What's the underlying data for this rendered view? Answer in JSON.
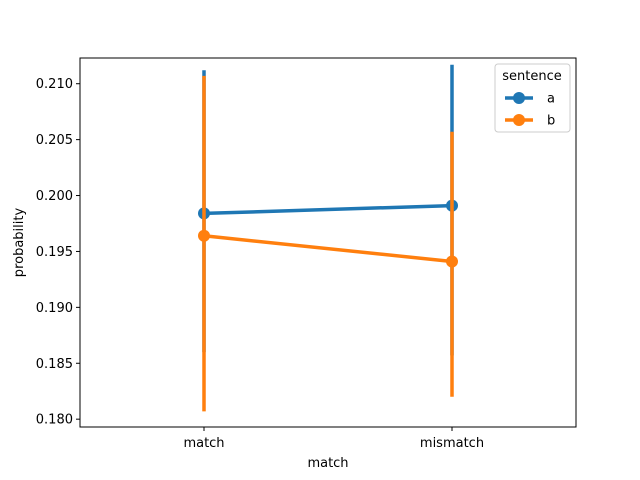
{
  "chart_data": {
    "type": "line",
    "subtype": "pointplot",
    "title": "",
    "xlabel": "match",
    "ylabel": "probability",
    "categories": [
      "match",
      "mismatch"
    ],
    "ylim": [
      0.1793,
      0.2123
    ],
    "yticks": [
      "0.180",
      "0.185",
      "0.190",
      "0.195",
      "0.200",
      "0.205",
      "0.210"
    ],
    "grid": false,
    "legend": {
      "title": "sentence",
      "position": "top-right"
    },
    "series": [
      {
        "name": "a",
        "color": "#1f77b4",
        "values": [
          0.1984,
          0.1991
        ],
        "ci": [
          [
            0.186,
            0.2112
          ],
          [
            0.1857,
            0.2117
          ]
        ]
      },
      {
        "name": "b",
        "color": "#ff7f0e",
        "values": [
          0.1964,
          0.1941
        ],
        "ci": [
          [
            0.1807,
            0.2107
          ],
          [
            0.182,
            0.2057
          ]
        ]
      }
    ]
  }
}
